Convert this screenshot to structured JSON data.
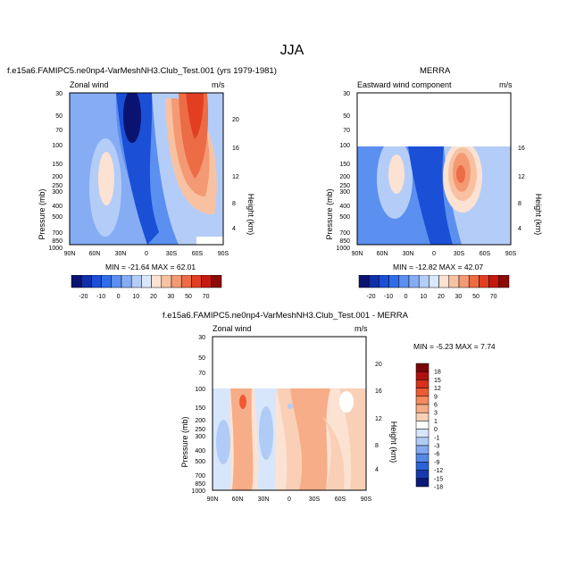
{
  "figure": {
    "title": "JJA"
  },
  "chart_data": [
    {
      "type": "heatmap",
      "title": "f.e15a6.FAMIPC5.ne0np4-VarMeshNH3.Club_Test.001 (yrs 1979-1981)",
      "left_label": "Zonal wind",
      "right_label": "m/s",
      "ylabel": "Pressure (mb)",
      "y2label": "Height (km)",
      "x_ticks": [
        "90N",
        "60N",
        "30N",
        "0",
        "30S",
        "60S",
        "90S"
      ],
      "y_ticks": [
        "30",
        "50",
        "70",
        "100",
        "150",
        "200",
        "250",
        "300",
        "400",
        "500",
        "700",
        "850",
        "1000"
      ],
      "y2_ticks": [
        "20",
        "16",
        "12",
        "8",
        "4"
      ],
      "min_max": "MIN = -21.64  MAX = 62.01",
      "colorbar_labels": [
        "-20",
        "-10",
        "0",
        "10",
        "20",
        "30",
        "50",
        "70"
      ]
    },
    {
      "type": "heatmap",
      "title": "MERRA",
      "left_label": "Eastward wind component",
      "right_label": "m/s",
      "ylabel": "Pressure (mb)",
      "y2label": "Height (km)",
      "x_ticks": [
        "90N",
        "60N",
        "30N",
        "0",
        "30S",
        "60S",
        "90S"
      ],
      "y_ticks": [
        "30",
        "50",
        "70",
        "100",
        "150",
        "200",
        "250",
        "300",
        "400",
        "500",
        "700",
        "850",
        "1000"
      ],
      "y2_ticks": [
        "16",
        "12",
        "8",
        "4"
      ],
      "min_max": "MIN = -12.82  MAX = 42.07",
      "colorbar_labels": [
        "-20",
        "-10",
        "0",
        "10",
        "20",
        "30",
        "50",
        "70"
      ]
    },
    {
      "type": "heatmap",
      "title": "f.e15a6.FAMIPC5.ne0np4-VarMeshNH3.Club_Test.001 - MERRA",
      "left_label": "Zonal wind",
      "right_label": "m/s",
      "ylabel": "Pressure (mb)",
      "y2label": "Height (km)",
      "x_ticks": [
        "90N",
        "60N",
        "30N",
        "0",
        "30S",
        "60S",
        "90S"
      ],
      "y_ticks": [
        "30",
        "50",
        "70",
        "100",
        "150",
        "200",
        "250",
        "300",
        "400",
        "500",
        "700",
        "850",
        "1000"
      ],
      "y2_ticks": [
        "20",
        "16",
        "12",
        "8",
        "4"
      ],
      "min_max": "MIN = -5.23  MAX =  7.74",
      "colorbar_labels": [
        "18",
        "15",
        "12",
        "9",
        "6",
        "3",
        "1",
        "0",
        "-1",
        "-3",
        "-6",
        "-9",
        "-12",
        "-15",
        "-18"
      ]
    }
  ],
  "colors": {
    "abs_scale": [
      "#0a1470",
      "#1030a8",
      "#1a4fd6",
      "#2f6ee8",
      "#5b8ff0",
      "#86acf4",
      "#b4cdf8",
      "#dbe7fb",
      "#fbe2d2",
      "#f8c2a2",
      "#f39a74",
      "#ec6c46",
      "#e23f22",
      "#c41a10",
      "#8c0a08"
    ],
    "diff_scale": [
      "#7a0606",
      "#b01010",
      "#d9301c",
      "#ef5a32",
      "#f48a5e",
      "#f6ad88",
      "#f9d0b6",
      "#ffffff",
      "#d8e6fb",
      "#b0cbf6",
      "#84a9f0",
      "#5688e8",
      "#2a62d8",
      "#1838b0",
      "#0a1878"
    ]
  }
}
